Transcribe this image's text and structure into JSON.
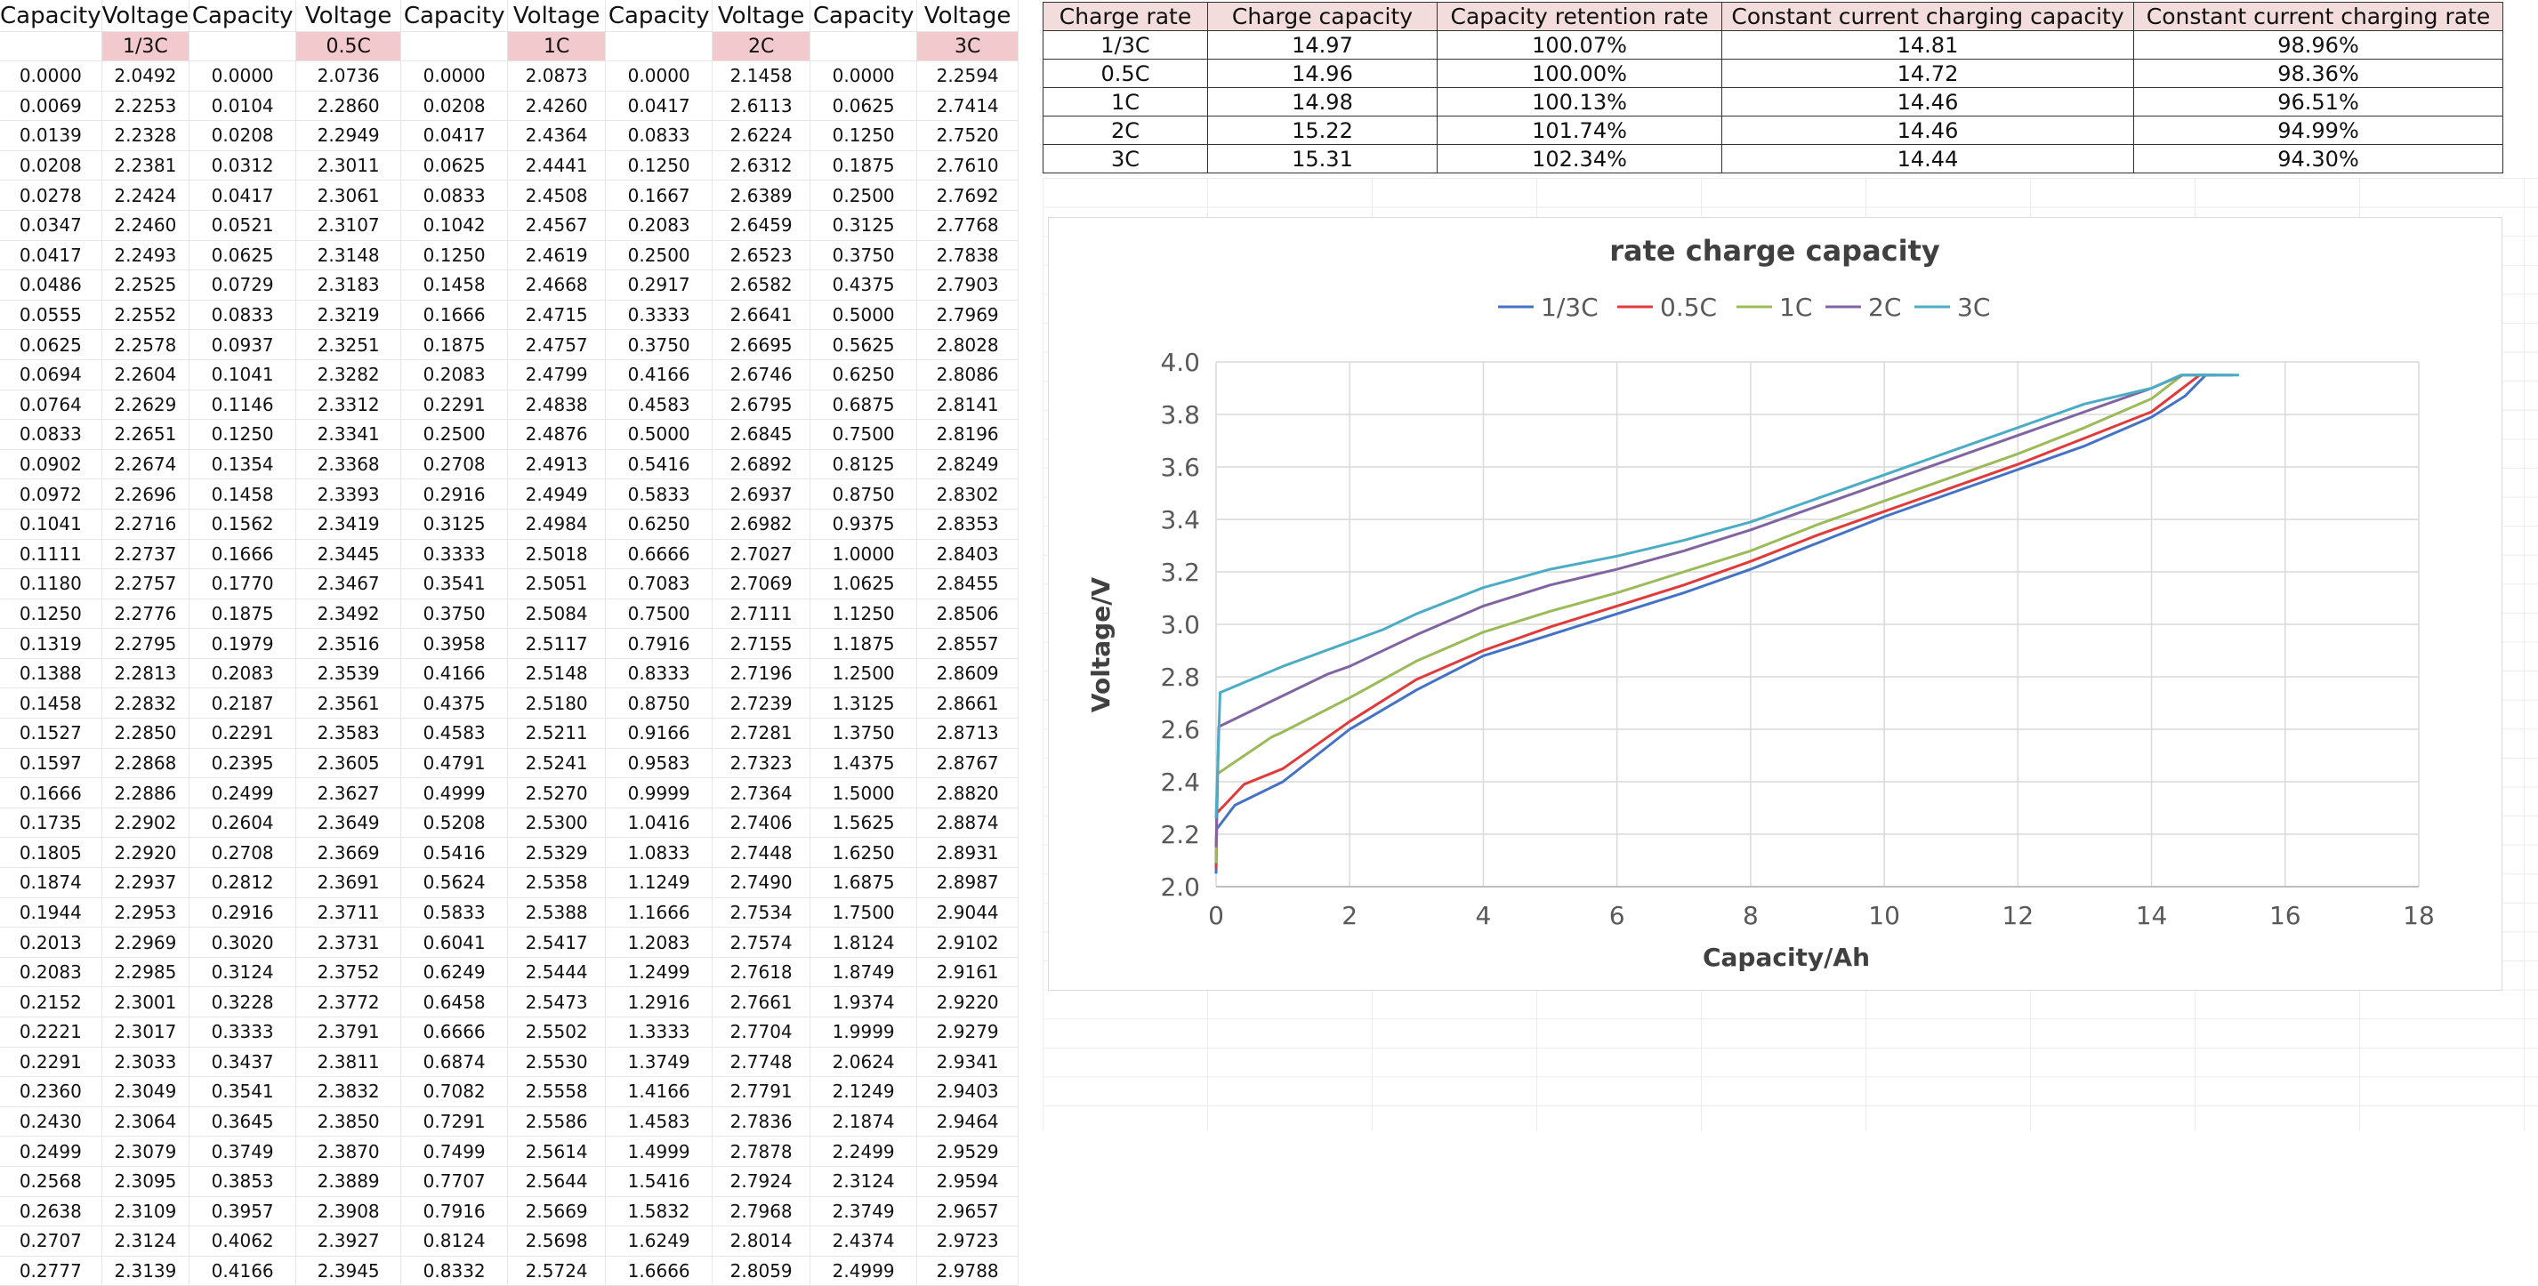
{
  "data_grid": {
    "headers": [
      "Capacity",
      "Voltage",
      "Capacity",
      "Voltage",
      "Capacity",
      "Voltage",
      "Capacity",
      "Voltage",
      "Capacity",
      "Voltage"
    ],
    "rate_labels": [
      "1/3C",
      "0.5C",
      "1C",
      "2C",
      "3C"
    ],
    "rows": [
      [
        "0.0000",
        "2.0492",
        "0.0000",
        "2.0736",
        "0.0000",
        "2.0873",
        "0.0000",
        "2.1458",
        "0.0000",
        "2.2594"
      ],
      [
        "0.0069",
        "2.2253",
        "0.0104",
        "2.2860",
        "0.0208",
        "2.4260",
        "0.0417",
        "2.6113",
        "0.0625",
        "2.7414"
      ],
      [
        "0.0139",
        "2.2328",
        "0.0208",
        "2.2949",
        "0.0417",
        "2.4364",
        "0.0833",
        "2.6224",
        "0.1250",
        "2.7520"
      ],
      [
        "0.0208",
        "2.2381",
        "0.0312",
        "2.3011",
        "0.0625",
        "2.4441",
        "0.1250",
        "2.6312",
        "0.1875",
        "2.7610"
      ],
      [
        "0.0278",
        "2.2424",
        "0.0417",
        "2.3061",
        "0.0833",
        "2.4508",
        "0.1667",
        "2.6389",
        "0.2500",
        "2.7692"
      ],
      [
        "0.0347",
        "2.2460",
        "0.0521",
        "2.3107",
        "0.1042",
        "2.4567",
        "0.2083",
        "2.6459",
        "0.3125",
        "2.7768"
      ],
      [
        "0.0417",
        "2.2493",
        "0.0625",
        "2.3148",
        "0.1250",
        "2.4619",
        "0.2500",
        "2.6523",
        "0.3750",
        "2.7838"
      ],
      [
        "0.0486",
        "2.2525",
        "0.0729",
        "2.3183",
        "0.1458",
        "2.4668",
        "0.2917",
        "2.6582",
        "0.4375",
        "2.7903"
      ],
      [
        "0.0555",
        "2.2552",
        "0.0833",
        "2.3219",
        "0.1666",
        "2.4715",
        "0.3333",
        "2.6641",
        "0.5000",
        "2.7969"
      ],
      [
        "0.0625",
        "2.2578",
        "0.0937",
        "2.3251",
        "0.1875",
        "2.4757",
        "0.3750",
        "2.6695",
        "0.5625",
        "2.8028"
      ],
      [
        "0.0694",
        "2.2604",
        "0.1041",
        "2.3282",
        "0.2083",
        "2.4799",
        "0.4166",
        "2.6746",
        "0.6250",
        "2.8086"
      ],
      [
        "0.0764",
        "2.2629",
        "0.1146",
        "2.3312",
        "0.2291",
        "2.4838",
        "0.4583",
        "2.6795",
        "0.6875",
        "2.8141"
      ],
      [
        "0.0833",
        "2.2651",
        "0.1250",
        "2.3341",
        "0.2500",
        "2.4876",
        "0.5000",
        "2.6845",
        "0.7500",
        "2.8196"
      ],
      [
        "0.0902",
        "2.2674",
        "0.1354",
        "2.3368",
        "0.2708",
        "2.4913",
        "0.5416",
        "2.6892",
        "0.8125",
        "2.8249"
      ],
      [
        "0.0972",
        "2.2696",
        "0.1458",
        "2.3393",
        "0.2916",
        "2.4949",
        "0.5833",
        "2.6937",
        "0.8750",
        "2.8302"
      ],
      [
        "0.1041",
        "2.2716",
        "0.1562",
        "2.3419",
        "0.3125",
        "2.4984",
        "0.6250",
        "2.6982",
        "0.9375",
        "2.8353"
      ],
      [
        "0.1111",
        "2.2737",
        "0.1666",
        "2.3445",
        "0.3333",
        "2.5018",
        "0.6666",
        "2.7027",
        "1.0000",
        "2.8403"
      ],
      [
        "0.1180",
        "2.2757",
        "0.1770",
        "2.3467",
        "0.3541",
        "2.5051",
        "0.7083",
        "2.7069",
        "1.0625",
        "2.8455"
      ],
      [
        "0.1250",
        "2.2776",
        "0.1875",
        "2.3492",
        "0.3750",
        "2.5084",
        "0.7500",
        "2.7111",
        "1.1250",
        "2.8506"
      ],
      [
        "0.1319",
        "2.2795",
        "0.1979",
        "2.3516",
        "0.3958",
        "2.5117",
        "0.7916",
        "2.7155",
        "1.1875",
        "2.8557"
      ],
      [
        "0.1388",
        "2.2813",
        "0.2083",
        "2.3539",
        "0.4166",
        "2.5148",
        "0.8333",
        "2.7196",
        "1.2500",
        "2.8609"
      ],
      [
        "0.1458",
        "2.2832",
        "0.2187",
        "2.3561",
        "0.4375",
        "2.5180",
        "0.8750",
        "2.7239",
        "1.3125",
        "2.8661"
      ],
      [
        "0.1527",
        "2.2850",
        "0.2291",
        "2.3583",
        "0.4583",
        "2.5211",
        "0.9166",
        "2.7281",
        "1.3750",
        "2.8713"
      ],
      [
        "0.1597",
        "2.2868",
        "0.2395",
        "2.3605",
        "0.4791",
        "2.5241",
        "0.9583",
        "2.7323",
        "1.4375",
        "2.8767"
      ],
      [
        "0.1666",
        "2.2886",
        "0.2499",
        "2.3627",
        "0.4999",
        "2.5270",
        "0.9999",
        "2.7364",
        "1.5000",
        "2.8820"
      ],
      [
        "0.1735",
        "2.2902",
        "0.2604",
        "2.3649",
        "0.5208",
        "2.5300",
        "1.0416",
        "2.7406",
        "1.5625",
        "2.8874"
      ],
      [
        "0.1805",
        "2.2920",
        "0.2708",
        "2.3669",
        "0.5416",
        "2.5329",
        "1.0833",
        "2.7448",
        "1.6250",
        "2.8931"
      ],
      [
        "0.1874",
        "2.2937",
        "0.2812",
        "2.3691",
        "0.5624",
        "2.5358",
        "1.1249",
        "2.7490",
        "1.6875",
        "2.8987"
      ],
      [
        "0.1944",
        "2.2953",
        "0.2916",
        "2.3711",
        "0.5833",
        "2.5388",
        "1.1666",
        "2.7534",
        "1.7500",
        "2.9044"
      ],
      [
        "0.2013",
        "2.2969",
        "0.3020",
        "2.3731",
        "0.6041",
        "2.5417",
        "1.2083",
        "2.7574",
        "1.8124",
        "2.9102"
      ],
      [
        "0.2083",
        "2.2985",
        "0.3124",
        "2.3752",
        "0.6249",
        "2.5444",
        "1.2499",
        "2.7618",
        "1.8749",
        "2.9161"
      ],
      [
        "0.2152",
        "2.3001",
        "0.3228",
        "2.3772",
        "0.6458",
        "2.5473",
        "1.2916",
        "2.7661",
        "1.9374",
        "2.9220"
      ],
      [
        "0.2221",
        "2.3017",
        "0.3333",
        "2.3791",
        "0.6666",
        "2.5502",
        "1.3333",
        "2.7704",
        "1.9999",
        "2.9279"
      ],
      [
        "0.2291",
        "2.3033",
        "0.3437",
        "2.3811",
        "0.6874",
        "2.5530",
        "1.3749",
        "2.7748",
        "2.0624",
        "2.9341"
      ],
      [
        "0.2360",
        "2.3049",
        "0.3541",
        "2.3832",
        "0.7082",
        "2.5558",
        "1.4166",
        "2.7791",
        "2.1249",
        "2.9403"
      ],
      [
        "0.2430",
        "2.3064",
        "0.3645",
        "2.3850",
        "0.7291",
        "2.5586",
        "1.4583",
        "2.7836",
        "2.1874",
        "2.9464"
      ],
      [
        "0.2499",
        "2.3079",
        "0.3749",
        "2.3870",
        "0.7499",
        "2.5614",
        "1.4999",
        "2.7878",
        "2.2499",
        "2.9529"
      ],
      [
        "0.2568",
        "2.3095",
        "0.3853",
        "2.3889",
        "0.7707",
        "2.5644",
        "1.5416",
        "2.7924",
        "2.3124",
        "2.9594"
      ],
      [
        "0.2638",
        "2.3109",
        "0.3957",
        "2.3908",
        "0.7916",
        "2.5669",
        "1.5832",
        "2.7968",
        "2.3749",
        "2.9657"
      ],
      [
        "0.2707",
        "2.3124",
        "0.4062",
        "2.3927",
        "0.8124",
        "2.5698",
        "1.6249",
        "2.8014",
        "2.4374",
        "2.9723"
      ],
      [
        "0.2777",
        "2.3139",
        "0.4166",
        "2.3945",
        "0.8332",
        "2.5724",
        "1.6666",
        "2.8059",
        "2.4999",
        "2.9788"
      ]
    ]
  },
  "summary_table": {
    "headers": [
      "Charge rate",
      "Charge capacity",
      "Capacity retention rate",
      "Constant current charging capacity",
      "Constant current charging rate"
    ],
    "rows": [
      [
        "1/3C",
        "14.97",
        "100.07%",
        "14.81",
        "98.96%"
      ],
      [
        "0.5C",
        "14.96",
        "100.00%",
        "14.72",
        "98.36%"
      ],
      [
        "1C",
        "14.98",
        "100.13%",
        "14.46",
        "96.51%"
      ],
      [
        "2C",
        "15.22",
        "101.74%",
        "14.46",
        "94.99%"
      ],
      [
        "3C",
        "15.31",
        "102.34%",
        "14.44",
        "94.30%"
      ]
    ]
  },
  "chart_data": {
    "type": "line",
    "title": "rate charge capacity",
    "xlabel": "Capacity/Ah",
    "ylabel": "Voltage/V",
    "xlim": [
      0,
      18
    ],
    "ylim": [
      2.0,
      4.0
    ],
    "x_ticks": [
      0,
      2,
      4,
      6,
      8,
      10,
      12,
      14,
      16,
      18
    ],
    "y_ticks": [
      2.0,
      2.2,
      2.4,
      2.6,
      2.8,
      3.0,
      3.2,
      3.4,
      3.6,
      3.8,
      4.0
    ],
    "x_tick_labels": [
      "0",
      "2",
      "4",
      "6",
      "8",
      "10",
      "12",
      "14",
      "16",
      "18"
    ],
    "y_tick_labels": [
      "2.0",
      "2.2",
      "2.4",
      "2.6",
      "2.8",
      "3.0",
      "3.2",
      "3.4",
      "3.6",
      "3.8",
      "4.0"
    ],
    "grid": true,
    "legend_position": "top",
    "series": [
      {
        "name": "1/3C",
        "color": "#4472c4",
        "points": [
          [
            0,
            2.05
          ],
          [
            0.01,
            2.22
          ],
          [
            0.28,
            2.31
          ],
          [
            1,
            2.4
          ],
          [
            2,
            2.6
          ],
          [
            3,
            2.75
          ],
          [
            4,
            2.88
          ],
          [
            5,
            2.96
          ],
          [
            6,
            3.04
          ],
          [
            7,
            3.12
          ],
          [
            8,
            3.21
          ],
          [
            9,
            3.31
          ],
          [
            10,
            3.41
          ],
          [
            11,
            3.5
          ],
          [
            12,
            3.59
          ],
          [
            13,
            3.68
          ],
          [
            14,
            3.79
          ],
          [
            14.5,
            3.87
          ],
          [
            14.81,
            3.95
          ],
          [
            14.97,
            3.95
          ]
        ]
      },
      {
        "name": "0.5C",
        "color": "#e03a3a",
        "points": [
          [
            0,
            2.07
          ],
          [
            0.01,
            2.28
          ],
          [
            0.42,
            2.39
          ],
          [
            1,
            2.45
          ],
          [
            2,
            2.63
          ],
          [
            3,
            2.79
          ],
          [
            4,
            2.9
          ],
          [
            5,
            2.99
          ],
          [
            6,
            3.07
          ],
          [
            7,
            3.15
          ],
          [
            8,
            3.24
          ],
          [
            9,
            3.34
          ],
          [
            10,
            3.43
          ],
          [
            11,
            3.52
          ],
          [
            12,
            3.61
          ],
          [
            13,
            3.71
          ],
          [
            14,
            3.81
          ],
          [
            14.72,
            3.95
          ],
          [
            14.96,
            3.95
          ]
        ]
      },
      {
        "name": "1C",
        "color": "#9bbb59",
        "points": [
          [
            0,
            2.09
          ],
          [
            0.02,
            2.43
          ],
          [
            0.83,
            2.57
          ],
          [
            1,
            2.59
          ],
          [
            2,
            2.72
          ],
          [
            3,
            2.86
          ],
          [
            4,
            2.97
          ],
          [
            5,
            3.05
          ],
          [
            6,
            3.12
          ],
          [
            7,
            3.2
          ],
          [
            8,
            3.28
          ],
          [
            9,
            3.38
          ],
          [
            10,
            3.47
          ],
          [
            11,
            3.56
          ],
          [
            12,
            3.65
          ],
          [
            13,
            3.75
          ],
          [
            14,
            3.86
          ],
          [
            14.46,
            3.95
          ],
          [
            14.98,
            3.95
          ]
        ]
      },
      {
        "name": "2C",
        "color": "#8064a2",
        "points": [
          [
            0,
            2.15
          ],
          [
            0.04,
            2.61
          ],
          [
            1.67,
            2.81
          ],
          [
            2,
            2.84
          ],
          [
            3,
            2.96
          ],
          [
            4,
            3.07
          ],
          [
            5,
            3.15
          ],
          [
            6,
            3.21
          ],
          [
            7,
            3.28
          ],
          [
            8,
            3.36
          ],
          [
            9,
            3.45
          ],
          [
            10,
            3.54
          ],
          [
            11,
            3.63
          ],
          [
            12,
            3.72
          ],
          [
            13,
            3.81
          ],
          [
            14,
            3.9
          ],
          [
            14.46,
            3.95
          ],
          [
            15.22,
            3.95
          ]
        ]
      },
      {
        "name": "3C",
        "color": "#4bacc6",
        "points": [
          [
            0,
            2.26
          ],
          [
            0.06,
            2.74
          ],
          [
            1,
            2.84
          ],
          [
            2.5,
            2.98
          ],
          [
            3,
            3.04
          ],
          [
            4,
            3.14
          ],
          [
            5,
            3.21
          ],
          [
            6,
            3.26
          ],
          [
            7,
            3.32
          ],
          [
            8,
            3.39
          ],
          [
            9,
            3.48
          ],
          [
            10,
            3.57
          ],
          [
            11,
            3.66
          ],
          [
            12,
            3.75
          ],
          [
            13,
            3.84
          ],
          [
            14,
            3.9
          ],
          [
            14.44,
            3.95
          ],
          [
            15.31,
            3.95
          ]
        ]
      }
    ]
  }
}
